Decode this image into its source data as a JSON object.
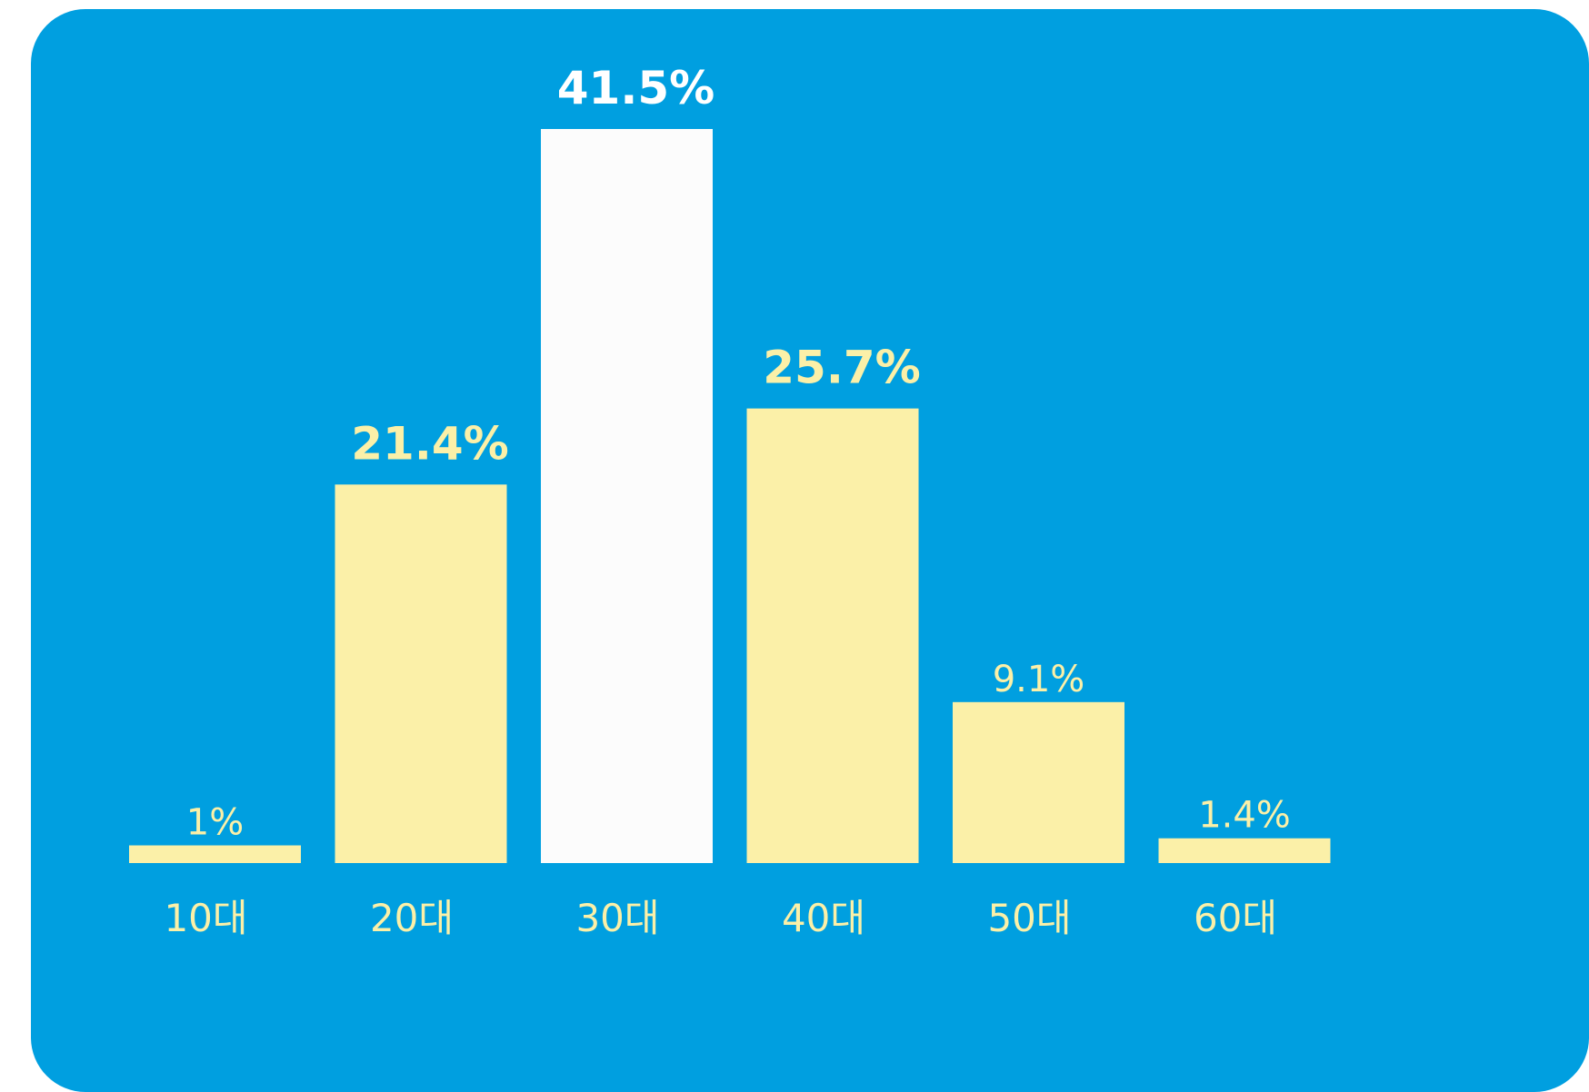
{
  "chart_data": {
    "type": "bar",
    "categories": [
      "10대",
      "20대",
      "30대",
      "40대",
      "50대",
      "60대"
    ],
    "values": [
      1,
      21.4,
      41.5,
      25.7,
      9.1,
      1.4
    ],
    "value_labels": [
      "1%",
      "21.4%",
      "41.5%",
      "25.7%",
      "9.1%",
      "1.4%"
    ],
    "ylim": [
      0,
      41.5
    ],
    "grid": false,
    "legend": "none",
    "highlight_index": 2,
    "colors": {
      "background": "#009fe0",
      "bar": "#fbf0a8",
      "highlight_bar": "#fcfcfc",
      "label": "#fbf0a8",
      "highlight_label": "#ffffff",
      "tick": "#fbf0a8"
    }
  }
}
